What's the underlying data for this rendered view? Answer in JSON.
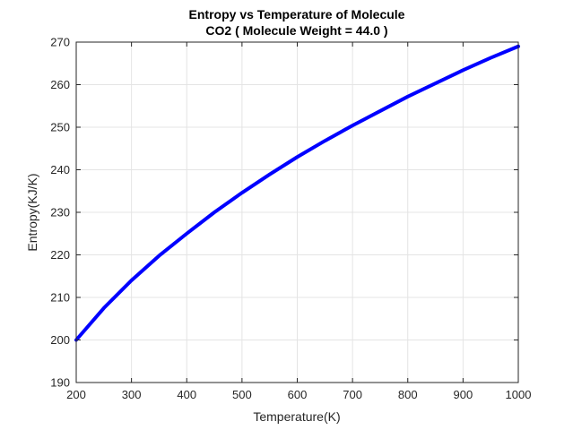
{
  "chart_data": {
    "type": "line",
    "title": "Entropy vs Temperature of Molecule",
    "subtitle": "CO2 ( Molecule Weight = 44.0 )",
    "xlabel": "Temperature(K)",
    "ylabel": "Entropy(KJ/K)",
    "xlim": [
      200,
      1000
    ],
    "ylim": [
      190,
      270
    ],
    "xticks": [
      200,
      300,
      400,
      500,
      600,
      700,
      800,
      900,
      1000
    ],
    "yticks": [
      190,
      200,
      210,
      220,
      230,
      240,
      250,
      260,
      270
    ],
    "grid": true,
    "series": [
      {
        "color": "#0000ff",
        "x": [
          200,
          250,
          300,
          350,
          400,
          450,
          500,
          550,
          600,
          650,
          700,
          750,
          800,
          850,
          900,
          950,
          1000
        ],
        "y": [
          200,
          207.5,
          214,
          219.8,
          225,
          230,
          234.6,
          238.9,
          243,
          246.8,
          250.4,
          253.8,
          257.2,
          260.3,
          263.4,
          266.3,
          269
        ]
      }
    ]
  }
}
